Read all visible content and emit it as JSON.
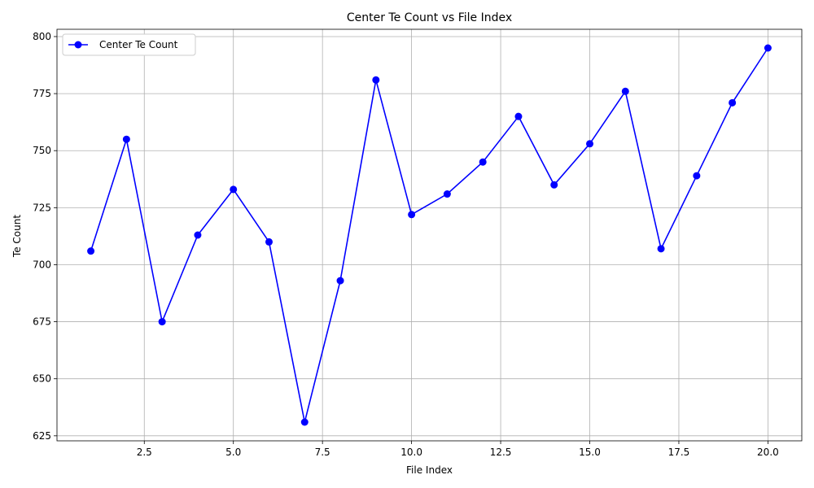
{
  "chart_data": {
    "type": "line",
    "title": "Center Te Count vs File Index",
    "xlabel": "File Index",
    "ylabel": "Te Count",
    "xlim": [
      0.05,
      20.95
    ],
    "ylim": [
      622.8,
      803.2
    ],
    "xticks": [
      2.5,
      5.0,
      7.5,
      10.0,
      12.5,
      15.0,
      17.5,
      20.0
    ],
    "xtick_labels": [
      "2.5",
      "5.0",
      "7.5",
      "10.0",
      "12.5",
      "15.0",
      "17.5",
      "20.0"
    ],
    "yticks": [
      625,
      650,
      675,
      700,
      725,
      750,
      775,
      800
    ],
    "ytick_labels": [
      "625",
      "650",
      "675",
      "700",
      "725",
      "750",
      "775",
      "800"
    ],
    "grid": true,
    "legend_position": "top-left",
    "series": [
      {
        "name": "Center Te Count",
        "color": "#0000ff",
        "marker": "circle",
        "x": [
          1,
          2,
          3,
          4,
          5,
          6,
          7,
          8,
          9,
          10,
          11,
          12,
          13,
          14,
          15,
          16,
          17,
          18,
          19,
          20
        ],
        "y": [
          706,
          755,
          675,
          713,
          733,
          710,
          631,
          693,
          781,
          722,
          731,
          745,
          765,
          735,
          753,
          776,
          707,
          739,
          771,
          795
        ]
      }
    ]
  }
}
